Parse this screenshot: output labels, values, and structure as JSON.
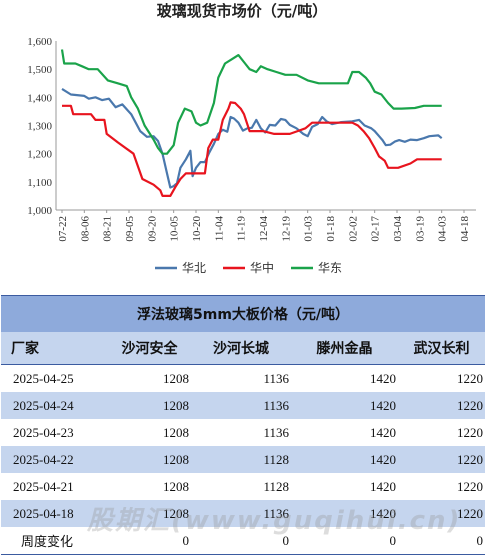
{
  "chart_data": {
    "type": "line",
    "title": "玻璃现货市场价（元/吨）",
    "ylim": [
      1000,
      1600
    ],
    "yticks": [
      "1,000",
      "1,100",
      "1,200",
      "1,300",
      "1,400",
      "1,500",
      "1,600"
    ],
    "xticks": [
      "07-22",
      "08-06",
      "08-21",
      "09-05",
      "09-20",
      "10-05",
      "10-20",
      "11-04",
      "11-19",
      "12-04",
      "12-19",
      "01-03",
      "01-18",
      "02-02",
      "02-17",
      "03-04",
      "03-19",
      "04-03",
      "04-18"
    ],
    "legend_position": "bottom",
    "series": [
      {
        "name": "华北",
        "color": "#4a78ad",
        "points": [
          [
            0,
            1430
          ],
          [
            0.4,
            1410
          ],
          [
            1,
            1405
          ],
          [
            1.2,
            1395
          ],
          [
            1.5,
            1400
          ],
          [
            1.8,
            1390
          ],
          [
            2.1,
            1395
          ],
          [
            2.4,
            1365
          ],
          [
            2.7,
            1375
          ],
          [
            3.1,
            1340
          ],
          [
            3.5,
            1280
          ],
          [
            3.8,
            1260
          ],
          [
            4.1,
            1262
          ],
          [
            4.3,
            1245
          ],
          [
            4.5,
            1200
          ],
          [
            4.7,
            1130
          ],
          [
            4.85,
            1080
          ],
          [
            5.0,
            1085
          ],
          [
            5.15,
            1095
          ],
          [
            5.3,
            1150
          ],
          [
            5.55,
            1180
          ],
          [
            5.75,
            1210
          ],
          [
            5.85,
            1120
          ],
          [
            6.0,
            1150
          ],
          [
            6.2,
            1170
          ],
          [
            6.4,
            1170
          ],
          [
            6.6,
            1205
          ],
          [
            6.8,
            1235
          ],
          [
            7.0,
            1270
          ],
          [
            7.2,
            1285
          ],
          [
            7.4,
            1278
          ],
          [
            7.55,
            1330
          ],
          [
            7.7,
            1325
          ],
          [
            7.9,
            1310
          ],
          [
            8.1,
            1282
          ],
          [
            8.3,
            1290
          ],
          [
            8.5,
            1292
          ],
          [
            8.7,
            1320
          ],
          [
            8.9,
            1290
          ],
          [
            9.1,
            1275
          ],
          [
            9.3,
            1302
          ],
          [
            9.55,
            1300
          ],
          [
            9.8,
            1323
          ],
          [
            10.0,
            1320
          ],
          [
            10.2,
            1302
          ],
          [
            10.5,
            1290
          ],
          [
            10.8,
            1270
          ],
          [
            11.0,
            1262
          ],
          [
            11.2,
            1295
          ],
          [
            11.45,
            1305
          ],
          [
            11.65,
            1330
          ],
          [
            11.85,
            1315
          ],
          [
            12.1,
            1305
          ],
          [
            12.5,
            1312
          ],
          [
            13.0,
            1315
          ],
          [
            13.3,
            1320
          ],
          [
            13.55,
            1300
          ],
          [
            13.85,
            1290
          ],
          [
            14.0,
            1280
          ],
          [
            14.2,
            1262
          ],
          [
            14.35,
            1248
          ],
          [
            14.5,
            1230
          ],
          [
            14.7,
            1232
          ],
          [
            14.9,
            1243
          ],
          [
            15.1,
            1248
          ],
          [
            15.35,
            1242
          ],
          [
            15.6,
            1250
          ],
          [
            15.9,
            1248
          ],
          [
            16.2,
            1255
          ],
          [
            16.45,
            1262
          ],
          [
            16.85,
            1265
          ],
          [
            17.0,
            1255
          ]
        ]
      },
      {
        "name": "华中",
        "color": "#e8141e",
        "points": [
          [
            0,
            1370
          ],
          [
            0.4,
            1370
          ],
          [
            0.5,
            1340
          ],
          [
            1.3,
            1340
          ],
          [
            1.5,
            1320
          ],
          [
            1.9,
            1320
          ],
          [
            2.0,
            1270
          ],
          [
            2.5,
            1240
          ],
          [
            3.2,
            1200
          ],
          [
            3.6,
            1110
          ],
          [
            4.1,
            1090
          ],
          [
            4.4,
            1070
          ],
          [
            4.5,
            1050
          ],
          [
            4.85,
            1050
          ],
          [
            5.1,
            1085
          ],
          [
            5.3,
            1110
          ],
          [
            5.55,
            1130
          ],
          [
            6.0,
            1130
          ],
          [
            6.4,
            1130
          ],
          [
            6.55,
            1220
          ],
          [
            6.75,
            1250
          ],
          [
            7.0,
            1250
          ],
          [
            7.2,
            1320
          ],
          [
            7.45,
            1360
          ],
          [
            7.55,
            1382
          ],
          [
            7.75,
            1380
          ],
          [
            8.0,
            1360
          ],
          [
            8.15,
            1340
          ],
          [
            8.4,
            1280
          ],
          [
            9.0,
            1280
          ],
          [
            9.5,
            1270
          ],
          [
            10.2,
            1270
          ],
          [
            10.55,
            1280
          ],
          [
            10.9,
            1290
          ],
          [
            11.2,
            1310
          ],
          [
            12.0,
            1310
          ],
          [
            13.0,
            1310
          ],
          [
            13.25,
            1300
          ],
          [
            13.5,
            1280
          ],
          [
            13.75,
            1255
          ],
          [
            14.0,
            1220
          ],
          [
            14.2,
            1190
          ],
          [
            14.45,
            1175
          ],
          [
            14.6,
            1150
          ],
          [
            15.05,
            1150
          ],
          [
            15.6,
            1165
          ],
          [
            15.9,
            1180
          ],
          [
            17.0,
            1180
          ]
        ]
      },
      {
        "name": "华东",
        "color": "#1aa34a",
        "points": [
          [
            0,
            1570
          ],
          [
            0.1,
            1520
          ],
          [
            0.6,
            1520
          ],
          [
            0.9,
            1510
          ],
          [
            1.2,
            1500
          ],
          [
            1.6,
            1500
          ],
          [
            2.05,
            1460
          ],
          [
            2.5,
            1450
          ],
          [
            2.9,
            1440
          ],
          [
            3.1,
            1400
          ],
          [
            3.4,
            1360
          ],
          [
            3.7,
            1300
          ],
          [
            4.1,
            1250
          ],
          [
            4.3,
            1220
          ],
          [
            4.5,
            1200
          ],
          [
            4.7,
            1200
          ],
          [
            5.0,
            1230
          ],
          [
            5.2,
            1310
          ],
          [
            5.5,
            1360
          ],
          [
            5.8,
            1350
          ],
          [
            6.0,
            1310
          ],
          [
            6.2,
            1300
          ],
          [
            6.5,
            1310
          ],
          [
            6.8,
            1380
          ],
          [
            7.0,
            1470
          ],
          [
            7.3,
            1520
          ],
          [
            7.6,
            1535
          ],
          [
            7.9,
            1550
          ],
          [
            8.2,
            1520
          ],
          [
            8.4,
            1500
          ],
          [
            8.7,
            1490
          ],
          [
            8.9,
            1510
          ],
          [
            9.2,
            1500
          ],
          [
            9.6,
            1490
          ],
          [
            10.0,
            1480
          ],
          [
            10.5,
            1480
          ],
          [
            11.0,
            1460
          ],
          [
            11.5,
            1450
          ],
          [
            12.0,
            1450
          ],
          [
            12.5,
            1450
          ],
          [
            12.8,
            1450
          ],
          [
            13.0,
            1490
          ],
          [
            13.3,
            1490
          ],
          [
            13.6,
            1470
          ],
          [
            13.8,
            1450
          ],
          [
            14.0,
            1420
          ],
          [
            14.3,
            1410
          ],
          [
            14.6,
            1380
          ],
          [
            14.85,
            1360
          ],
          [
            15.2,
            1360
          ],
          [
            15.8,
            1362
          ],
          [
            16.2,
            1370
          ],
          [
            17.0,
            1370
          ]
        ]
      }
    ]
  },
  "table": {
    "title": "浮法玻璃5mm大板价格（元/吨）",
    "headers": [
      "厂家",
      "沙河安全",
      "沙河长城",
      "滕州金晶",
      "武汉长利"
    ],
    "rows": [
      [
        "2025-04-25",
        "1208",
        "1136",
        "1420",
        "1220"
      ],
      [
        "2025-04-24",
        "1208",
        "1136",
        "1420",
        "1220"
      ],
      [
        "2025-04-23",
        "1208",
        "1136",
        "1420",
        "1220"
      ],
      [
        "2025-04-22",
        "1208",
        "1128",
        "1420",
        "1220"
      ],
      [
        "2025-04-21",
        "1208",
        "1128",
        "1420",
        "1220"
      ],
      [
        "2025-04-18",
        "1208",
        "1136",
        "1420",
        "1220"
      ]
    ],
    "change_row": [
      "周度变化",
      "0",
      "0",
      "0",
      "0"
    ]
  },
  "watermark": "股期汇(www.guqihui.cn)"
}
